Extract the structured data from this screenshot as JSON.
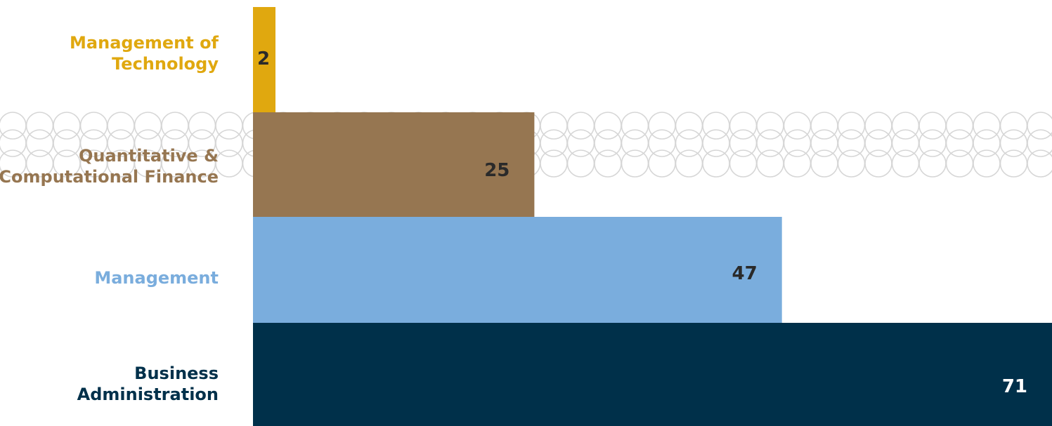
{
  "chart_data": {
    "type": "bar",
    "orientation": "horizontal",
    "title": "",
    "xlabel": "",
    "ylabel": "",
    "categories": [
      [
        "Management of",
        "Technology"
      ],
      [
        "Quantitative &",
        "Computational Finance"
      ],
      [
        "Management"
      ],
      [
        "Business",
        "Administration"
      ]
    ],
    "values": [
      2,
      25,
      47,
      71
    ],
    "xlim": [
      0,
      71
    ],
    "grid": false,
    "legend": "none",
    "colors": [
      "#E0A80F",
      "#967651",
      "#7AADDD",
      "#00304A"
    ],
    "label_colors": [
      "#E0A80F",
      "#967651",
      "#7AADDD",
      "#00304A"
    ],
    "value_label_colors": [
      "#2A2A2A",
      "#2A2A2A",
      "#2A2A2A",
      "#FFFFFF"
    ],
    "background_pattern": "circles",
    "pattern_color": "#D6D6D6"
  }
}
